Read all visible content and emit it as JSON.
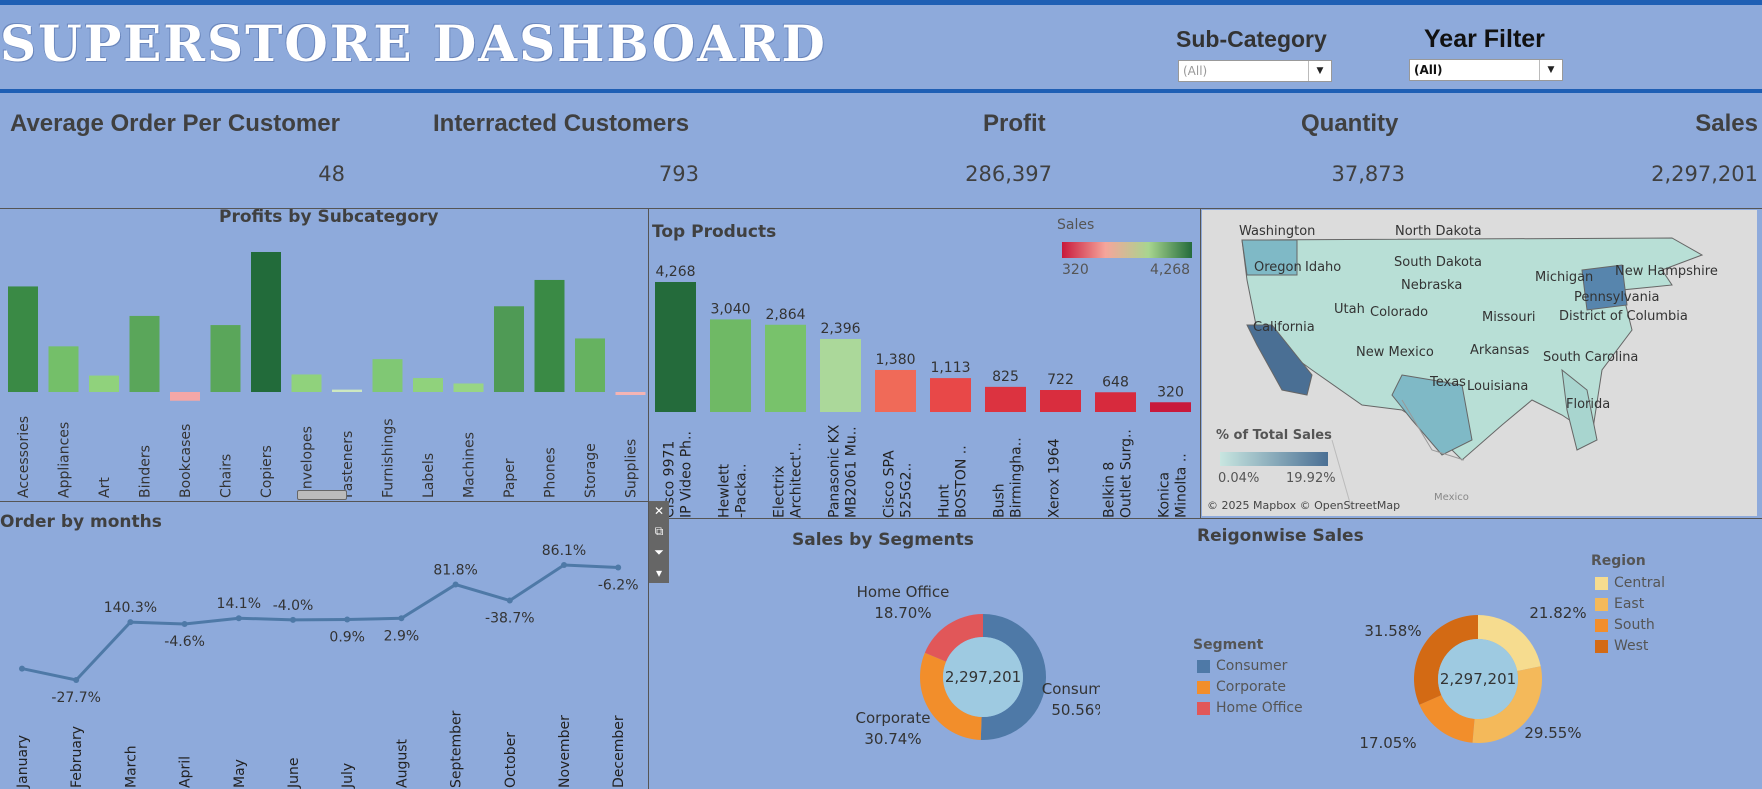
{
  "header": {
    "title": "SUPERSTORE DASHBOARD",
    "subcategory_filter": {
      "label": "Sub-Category",
      "value": "(All)"
    },
    "year_filter": {
      "label": "Year Filter",
      "value": "(All)"
    }
  },
  "kpis": {
    "avg_order": {
      "label": "Average Order Per Customer",
      "value": "48"
    },
    "customers": {
      "label": "Interracted Customers",
      "value": "793"
    },
    "profit": {
      "label": "Profit",
      "value": "286,397"
    },
    "quantity": {
      "label": "Quantity",
      "value": "37,873"
    },
    "sales": {
      "label": "Sales",
      "value": "2,297,201"
    }
  },
  "toolbar": {
    "icons": [
      "close-icon",
      "popout-icon",
      "filter-icon",
      "more-options-icon"
    ]
  },
  "map": {
    "states": [
      "Washington",
      "North Dakota",
      "Oregon",
      "Idaho",
      "South Dakota",
      "Michigan",
      "New Hampshire",
      "Nebraska",
      "Pennsylvania",
      "Utah",
      "Colorado",
      "Missouri",
      "District of Columbia",
      "California",
      "New Mexico",
      "Arkansas",
      "South Carolina",
      "Texas",
      "Louisiana",
      "Florida",
      "Mexico"
    ],
    "legend_title": "% of Total Sales",
    "legend_min": "0.04%",
    "legend_max": "19.92%",
    "attribution": "© 2025 Mapbox © OpenStreetMap"
  },
  "segment_legend": {
    "title": "Segment",
    "items": [
      {
        "label": "Consumer",
        "color": "#4e79a7"
      },
      {
        "label": "Corporate",
        "color": "#f28e2b"
      },
      {
        "label": "Home Office",
        "color": "#e15759"
      }
    ]
  },
  "region_legend": {
    "title": "Region",
    "items": [
      {
        "label": "Central",
        "color": "#f1ce63"
      },
      {
        "label": "East",
        "color": "#f4b95a"
      },
      {
        "label": "South",
        "color": "#f28e2b"
      },
      {
        "label": "West",
        "color": "#d37219"
      }
    ]
  },
  "chart_data": [
    {
      "type": "bar",
      "title": "Profits by Subcategory",
      "categories": [
        "Accessories",
        "Appliances",
        "Art",
        "Binders",
        "Bookcases",
        "Chairs",
        "Copiers",
        "Envelopes",
        "Fasteners",
        "Furnishings",
        "Labels",
        "Machines",
        "Paper",
        "Phones",
        "Storage",
        "Supplies"
      ],
      "values": [
        41937,
        18138,
        6528,
        30222,
        -3473,
        26590,
        55618,
        6964,
        950,
        13059,
        5546,
        3385,
        34054,
        44516,
        21279,
        -1189
      ],
      "colors": [
        "#3a8a45",
        "#74bf69",
        "#90d27c",
        "#5aa65a",
        "#f4a7a7",
        "#5aa65a",
        "#226b3a",
        "#90d27c",
        "#cde8c0",
        "#80c874",
        "#90d27c",
        "#98d584",
        "#4f9a55",
        "#3a8a45",
        "#66b260",
        "#f4b4b4"
      ]
    },
    {
      "type": "bar",
      "title": "Top Products",
      "categories": [
        [
          "Cisco 9971",
          "IP Video Ph.."
        ],
        [
          "Hewlett",
          "-Packa.."
        ],
        [
          "Electrix",
          "Architect'.."
        ],
        [
          "Panasonic KX",
          "MB2061 Mu.."
        ],
        [
          "Cisco SPA",
          "525G2.."
        ],
        [
          "Hunt",
          "BOSTON .."
        ],
        [
          "Bush",
          "Birmingha.."
        ],
        [
          "Xerox 1964"
        ],
        [
          "Belkin 8",
          "Outlet Surg.."
        ],
        [
          "Konica",
          "Minolta .."
        ]
      ],
      "values": [
        4268,
        3040,
        2864,
        2396,
        1380,
        1113,
        825,
        722,
        648,
        320
      ],
      "value_labels": [
        "4,268",
        "3,040",
        "2,864",
        "2,396",
        "1,380",
        "1,113",
        "825",
        "722",
        "648",
        "320"
      ],
      "colors": [
        "#246b3b",
        "#6fb965",
        "#78c26b",
        "#abd89a",
        "#f06a58",
        "#e84848",
        "#dc3340",
        "#d92d3e",
        "#d72a3d",
        "#c8193c"
      ],
      "legend": {
        "title": "Sales",
        "min": "320",
        "max": "4,268"
      }
    },
    {
      "type": "line",
      "title": "Order by months",
      "categories": [
        "January",
        "February",
        "March",
        "April",
        "May",
        "June",
        "July",
        "August",
        "September",
        "October",
        "November",
        "December"
      ],
      "values": [
        null,
        -27.7,
        140.3,
        -4.6,
        14.1,
        -4.0,
        0.9,
        2.9,
        81.8,
        -38.7,
        86.1,
        -6.2
      ],
      "value_labels": [
        "",
        "-27.7%",
        "140.3%",
        "-4.6%",
        "14.1%",
        "-4.0%",
        "0.9%",
        "2.9%",
        "81.8%",
        "-38.7%",
        "86.1%",
        "-6.2%"
      ],
      "color": "#4e79a7"
    },
    {
      "type": "pie",
      "title": "Sales by Segments",
      "center_label": "2,297,201",
      "labels": [
        "Consumer",
        "Corporate",
        "Home Office"
      ],
      "values": [
        50.56,
        30.74,
        18.7
      ],
      "value_labels": [
        "50.56%",
        "30.74%",
        "18.70%"
      ],
      "colors": [
        "#4e79a7",
        "#f28e2b",
        "#e15759"
      ]
    },
    {
      "type": "pie",
      "title": "Reigonwise Sales",
      "center_label": "2,297,201",
      "labels": [
        "Central",
        "East",
        "South",
        "West"
      ],
      "values": [
        21.82,
        29.55,
        17.05,
        31.58
      ],
      "value_labels": [
        "21.82%",
        "29.55%",
        "17.05%",
        "31.58%"
      ],
      "colors": [
        "#f6dc8f",
        "#f4b95a",
        "#f28e2b",
        "#d36a14"
      ]
    }
  ]
}
